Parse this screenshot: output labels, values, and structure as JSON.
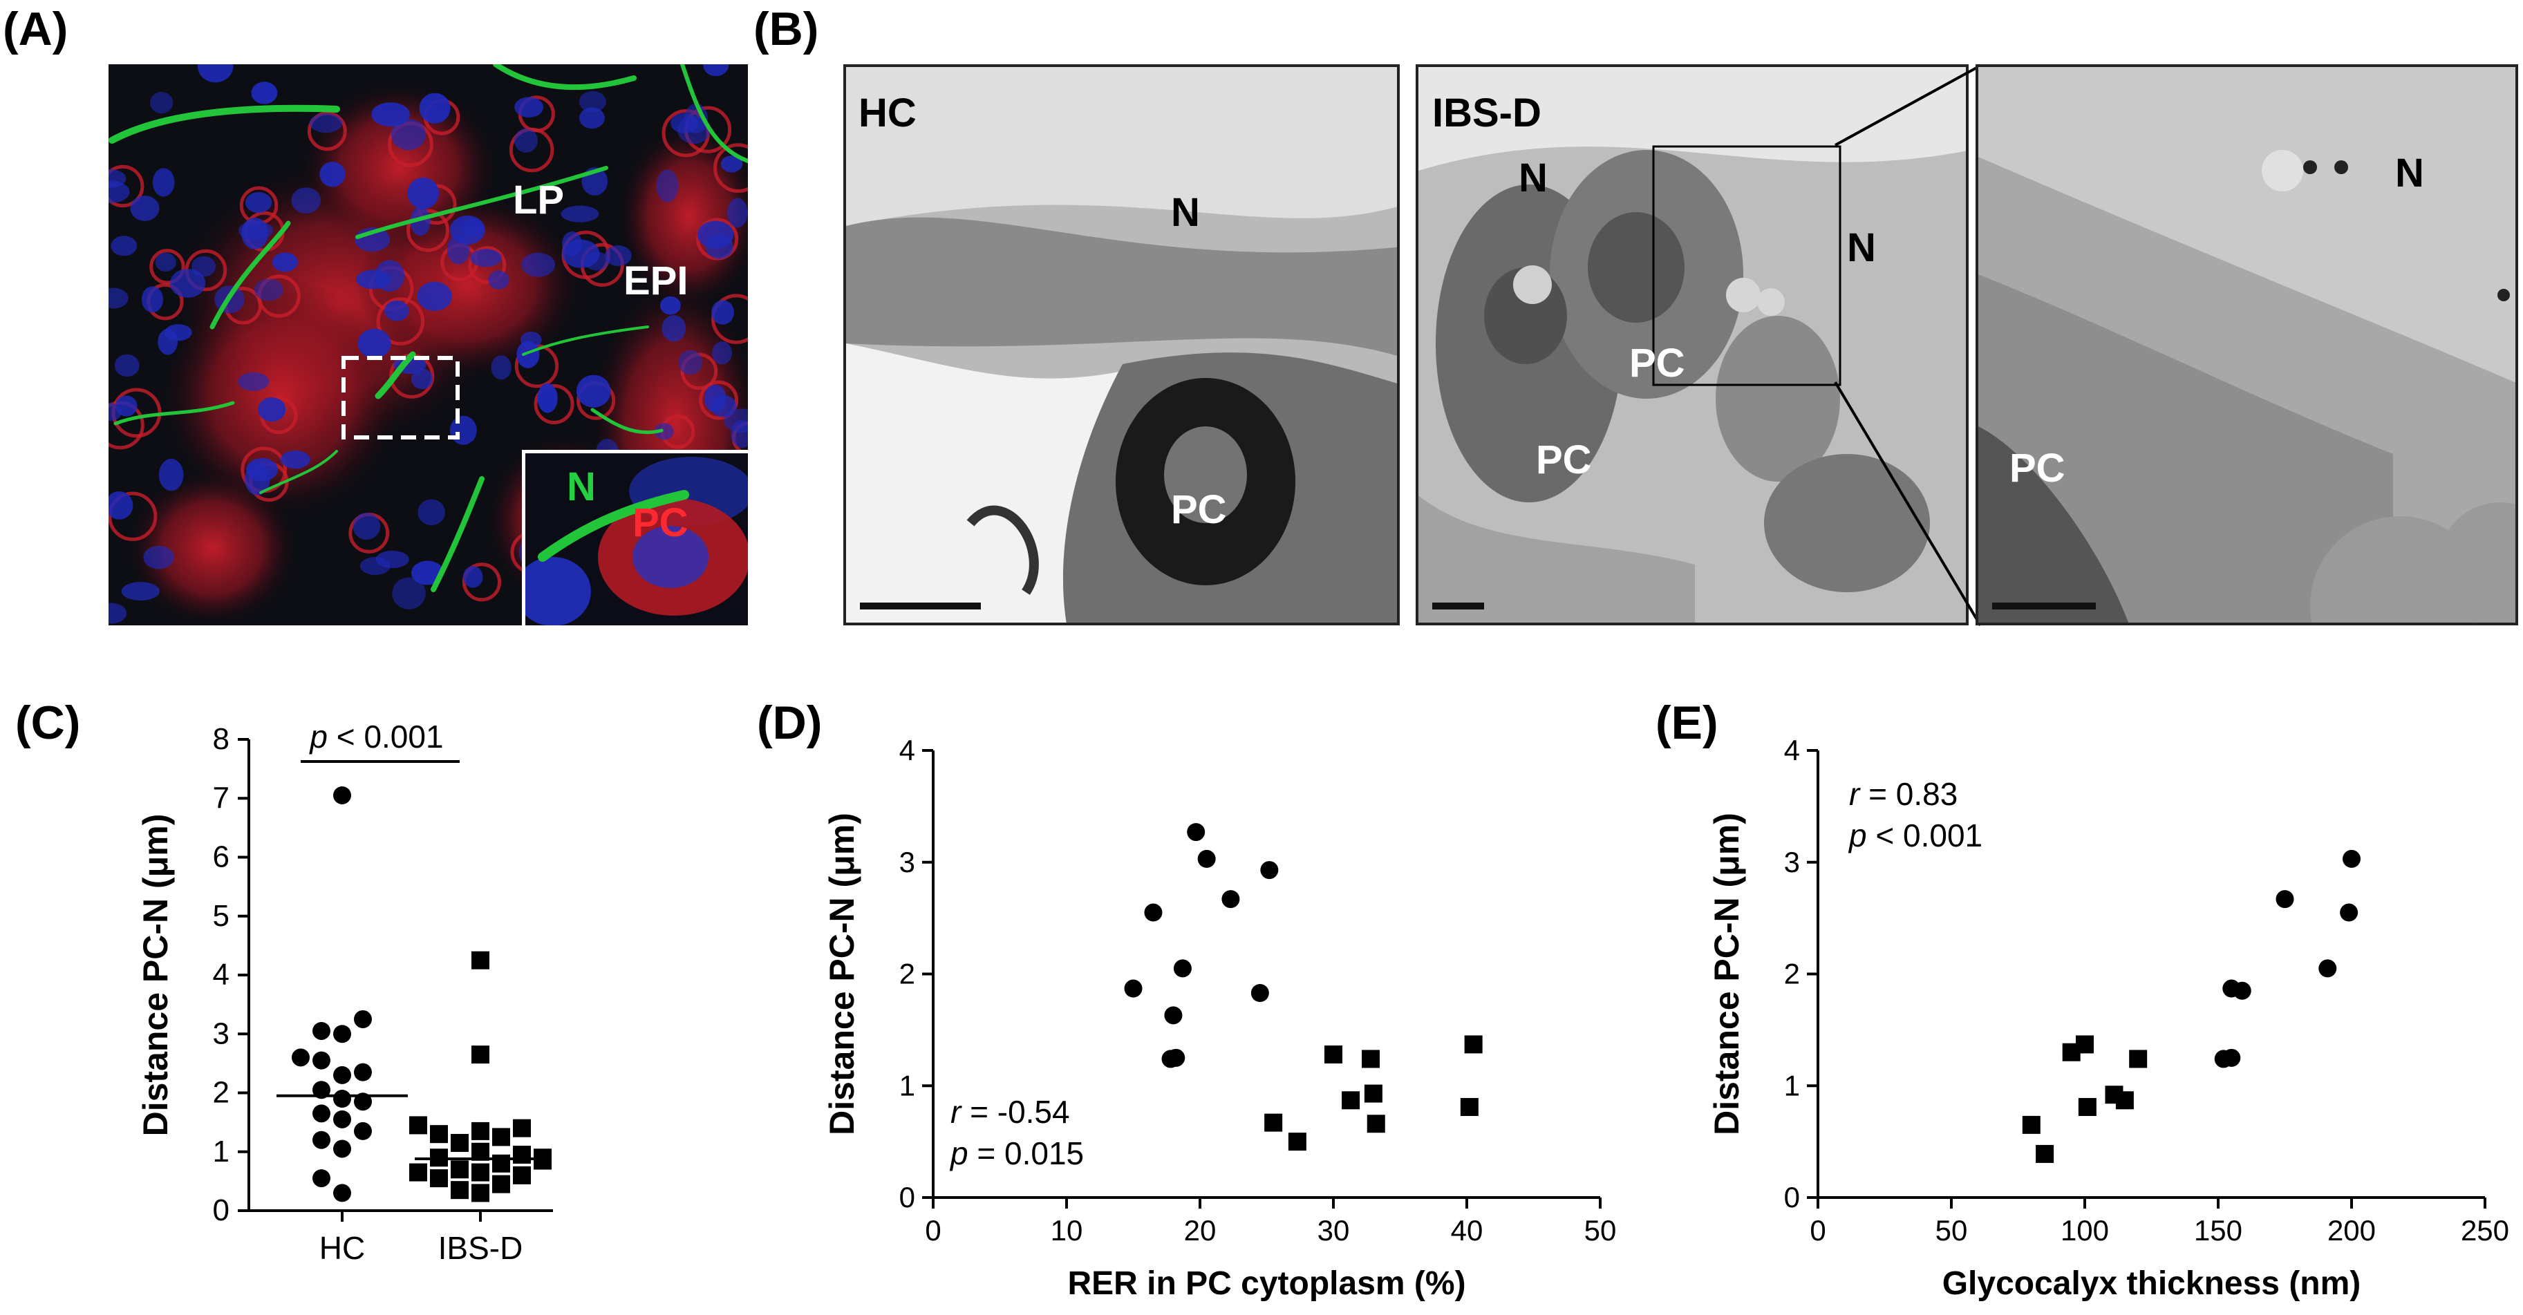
{
  "panels": {
    "A": {
      "letter": "(A)",
      "labels": {
        "lp": "LP",
        "epi": "EPI",
        "n": "N",
        "pc": "PC"
      }
    },
    "B": {
      "letter": "(B)",
      "hc": {
        "title": "HC",
        "n": "N",
        "pc": "PC"
      },
      "ibsd": {
        "title": "IBS-D",
        "n1": "N",
        "n2": "N",
        "pc1": "PC",
        "pc2": "PC"
      },
      "zoom": {
        "n": "N",
        "pc": "PC"
      }
    },
    "C": {
      "letter": "(C)"
    },
    "D": {
      "letter": "(D)"
    },
    "E": {
      "letter": "(E)"
    }
  },
  "colors": {
    "green_nerve": "#22c53a",
    "red_pc": "#e0202a",
    "blue_nuclei": "#1a2ab0"
  },
  "chart_data": [
    {
      "id": "C",
      "type": "scatter",
      "ylabel": "Distance PC-N (μm)",
      "categories": [
        "HC",
        "IBS-D"
      ],
      "ylim": [
        0,
        8
      ],
      "yticks": [
        0,
        1,
        2,
        3,
        4,
        5,
        6,
        7,
        8
      ],
      "annotation": {
        "p": "p",
        "rest": " < 0.001"
      },
      "series": [
        {
          "name": "HC",
          "marker": "circle",
          "median": 1.95,
          "values": [
            7.05,
            3.25,
            3.05,
            3.0,
            2.6,
            2.55,
            2.35,
            2.3,
            2.05,
            1.9,
            1.85,
            1.65,
            1.55,
            1.35,
            1.2,
            1.05,
            0.55,
            0.3
          ]
        },
        {
          "name": "IBS-D",
          "marker": "square",
          "median": 0.88,
          "values": [
            4.25,
            2.65,
            1.45,
            1.4,
            1.35,
            1.3,
            1.25,
            1.15,
            1.0,
            0.95,
            0.9,
            0.9,
            0.85,
            0.85,
            0.8,
            0.7,
            0.65,
            0.65,
            0.6,
            0.55,
            0.45,
            0.35,
            0.3
          ]
        }
      ]
    },
    {
      "id": "D",
      "type": "scatter",
      "xlabel": "RER in PC cytoplasm (%)",
      "ylabel": "Distance PC-N (μm)",
      "xlim": [
        0,
        50
      ],
      "ylim": [
        0,
        4
      ],
      "xticks": [
        0,
        10,
        20,
        30,
        40,
        50
      ],
      "yticks": [
        0,
        1,
        2,
        3,
        4
      ],
      "stats": {
        "r_sym": "r",
        "r_rest": " = -0.54",
        "p_sym": "p",
        "p_rest": " = 0.015"
      },
      "series": [
        {
          "name": "HC",
          "marker": "circle",
          "points": [
            [
              15,
              1.87
            ],
            [
              16.5,
              2.55
            ],
            [
              17.8,
              1.24
            ],
            [
              18.2,
              1.25
            ],
            [
              18,
              1.63
            ],
            [
              18.7,
              2.05
            ],
            [
              19.7,
              3.27
            ],
            [
              20.5,
              3.03
            ],
            [
              22.3,
              2.67
            ],
            [
              24.5,
              1.83
            ],
            [
              25.2,
              2.93
            ]
          ]
        },
        {
          "name": "IBS-D",
          "marker": "square",
          "points": [
            [
              25.5,
              0.67
            ],
            [
              27.3,
              0.5
            ],
            [
              30,
              1.28
            ],
            [
              31.3,
              0.87
            ],
            [
              32.8,
              1.24
            ],
            [
              33,
              0.93
            ],
            [
              33.2,
              0.66
            ],
            [
              40.2,
              0.81
            ],
            [
              40.5,
              1.37
            ]
          ]
        }
      ]
    },
    {
      "id": "E",
      "type": "scatter",
      "xlabel": "Glycocalyx thickness (nm)",
      "ylabel": "Distance PC-N (μm)",
      "xlim": [
        0,
        250
      ],
      "ylim": [
        0,
        4
      ],
      "xticks": [
        0,
        50,
        100,
        150,
        200,
        250
      ],
      "yticks": [
        0,
        1,
        2,
        3,
        4
      ],
      "stats": {
        "r_sym": "r",
        "r_rest": " = 0.83",
        "p_sym": "p",
        "p_rest": " < 0.001"
      },
      "series": [
        {
          "name": "HC",
          "marker": "circle",
          "points": [
            [
              152,
              1.24
            ],
            [
              155,
              1.25
            ],
            [
              155,
              1.87
            ],
            [
              159,
              1.85
            ],
            [
              175,
              2.67
            ],
            [
              191,
              2.05
            ],
            [
              199,
              2.55
            ],
            [
              200,
              3.03
            ]
          ]
        },
        {
          "name": "IBS-D",
          "marker": "square",
          "points": [
            [
              80,
              0.65
            ],
            [
              85,
              0.39
            ],
            [
              95,
              1.3
            ],
            [
              100,
              1.37
            ],
            [
              101,
              0.81
            ],
            [
              111,
              0.92
            ],
            [
              115,
              0.87
            ],
            [
              120,
              1.24
            ]
          ]
        }
      ]
    }
  ]
}
